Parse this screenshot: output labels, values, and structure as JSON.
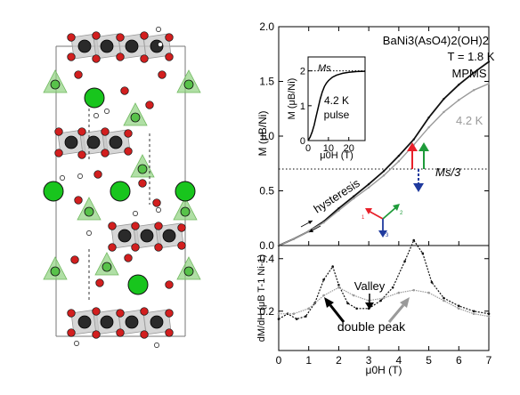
{
  "colors": {
    "black_series": "#111111",
    "gray_series": "#9a9a9a",
    "arrow_red": "#e8202a",
    "arrow_green": "#1e9b3a",
    "arrow_blue": "#1f3a9e",
    "octahedron_fill": "#c8c8c8",
    "tetrahedron_fill": "#8ed17f",
    "ba_atom": "#18c51d",
    "ni_atom": "#2a2a2a",
    "o_atom": "#d21f1f"
  },
  "chart_data": [
    {
      "type": "line",
      "panel": "main-magnetization",
      "title_lines": [
        "BaNi3(AsO4)2(OH)2",
        "T = 1.8 K",
        "MPMS"
      ],
      "ylabel": "M (μB/Ni)",
      "xlim": [
        0,
        7
      ],
      "ylim": [
        0,
        2.0
      ],
      "yticks": [
        "0.0",
        "0.5",
        "1.0",
        "1.5",
        "2.0"
      ],
      "reference_line": {
        "label": "Ms/3",
        "y": 0.7
      },
      "annotations": {
        "hysteresis": "hysteresis",
        "gray_label": "4.2 K"
      },
      "spin_axes_labels": [
        "1",
        "2",
        "3"
      ],
      "series": [
        {
          "label": "1.8 K",
          "x": [
            0,
            0.5,
            1.0,
            1.5,
            2.0,
            2.5,
            3.0,
            3.5,
            4.0,
            4.5,
            5.0,
            5.5,
            6.0,
            6.5,
            7.0
          ],
          "y": [
            0.0,
            0.06,
            0.13,
            0.22,
            0.34,
            0.45,
            0.56,
            0.68,
            0.82,
            0.97,
            1.17,
            1.34,
            1.47,
            1.58,
            1.68
          ]
        },
        {
          "label": "4.2 K",
          "x": [
            0,
            0.5,
            1.0,
            1.5,
            2.0,
            2.5,
            3.0,
            3.5,
            4.0,
            4.5,
            5.0,
            5.5,
            6.0,
            6.5,
            7.0
          ],
          "y": [
            0.0,
            0.06,
            0.13,
            0.21,
            0.32,
            0.43,
            0.53,
            0.64,
            0.77,
            0.92,
            1.08,
            1.22,
            1.33,
            1.42,
            1.48
          ]
        }
      ]
    },
    {
      "type": "line",
      "panel": "inset-pulse",
      "ylabel": "M (μB/Ni)",
      "xlabel": "μ0H (T)",
      "xlim": [
        0,
        28
      ],
      "ylim": [
        0,
        2.4
      ],
      "xticks": [
        "0",
        "10",
        "20"
      ],
      "yticks": [
        "0",
        "1",
        "2"
      ],
      "reference_line": {
        "label": "Ms",
        "y": 2.0
      },
      "annotation": [
        "4.2 K",
        "pulse"
      ],
      "series": [
        {
          "label": "4.2 K pulse",
          "x": [
            0,
            1,
            2,
            3,
            4,
            5,
            6,
            7,
            8,
            9,
            10,
            12,
            14,
            17,
            20,
            24,
            28
          ],
          "y": [
            0.0,
            0.1,
            0.25,
            0.45,
            0.7,
            0.95,
            1.2,
            1.4,
            1.55,
            1.65,
            1.72,
            1.82,
            1.88,
            1.93,
            1.96,
            1.98,
            1.99
          ]
        }
      ]
    },
    {
      "type": "line",
      "panel": "derivative",
      "ylabel": "dM/dH (μB T-1 Ni-1)",
      "xlabel": "μ0H (T)",
      "xlim": [
        0,
        7
      ],
      "ylim": [
        0.05,
        0.45
      ],
      "xticks": [
        "0",
        "1",
        "2",
        "3",
        "4",
        "5",
        "6",
        "7"
      ],
      "yticks": [
        "0.2",
        "0.4"
      ],
      "annotations": {
        "valley": "Valley",
        "double_peak": "double peak"
      },
      "series": [
        {
          "label": "1.8 K",
          "x": [
            0,
            0.3,
            0.6,
            0.9,
            1.2,
            1.5,
            1.8,
            2.0,
            2.3,
            2.6,
            3.0,
            3.4,
            3.8,
            4.2,
            4.5,
            4.8,
            5.1,
            5.5,
            6.0,
            6.5,
            7.0
          ],
          "y": [
            0.17,
            0.19,
            0.17,
            0.18,
            0.23,
            0.32,
            0.37,
            0.3,
            0.23,
            0.21,
            0.21,
            0.24,
            0.29,
            0.39,
            0.47,
            0.42,
            0.31,
            0.25,
            0.22,
            0.2,
            0.19
          ]
        },
        {
          "label": "4.2 K",
          "x": [
            0,
            0.5,
            1.0,
            1.5,
            2.0,
            2.5,
            3.0,
            3.5,
            4.0,
            4.5,
            5.0,
            5.5,
            6.0,
            6.5,
            7.0
          ],
          "y": [
            0.19,
            0.19,
            0.21,
            0.26,
            0.29,
            0.26,
            0.24,
            0.25,
            0.27,
            0.28,
            0.27,
            0.24,
            0.21,
            0.19,
            0.18
          ]
        }
      ]
    }
  ]
}
